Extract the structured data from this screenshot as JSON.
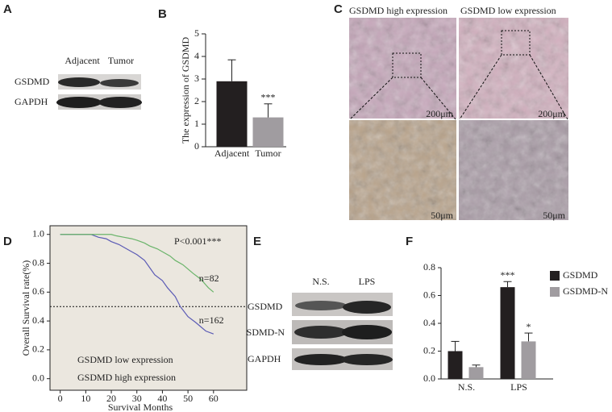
{
  "panel_labels": [
    "A",
    "B",
    "C",
    "D",
    "E",
    "F"
  ],
  "blot_a": {
    "lanes": [
      "Adjacent",
      "Tumor"
    ],
    "rows": [
      "GSDMD",
      "GAPDH"
    ]
  },
  "ihc": {
    "titles": [
      "GSDMD high expression",
      "GSDMD low expression"
    ],
    "scale_bars": [
      "200μm",
      "200μm",
      "50μm",
      "50μm"
    ]
  },
  "blot_e": {
    "lanes": [
      "N.S.",
      "LPS"
    ],
    "rows": [
      "GSDMD",
      "GSDMD-N",
      "GAPDH"
    ]
  },
  "chart_data": [
    {
      "type": "bar",
      "ylabel": "The expression of GSDMD",
      "categories": [
        "Adjacent",
        "Tumor"
      ],
      "values": [
        2.9,
        1.3
      ],
      "errors": [
        0.95,
        0.6
      ],
      "colors": [
        "#231f20",
        "#a09ca0"
      ],
      "value_annotations": [
        null,
        "***"
      ],
      "ylim": [
        0,
        5
      ],
      "yticks": [
        0,
        1,
        2,
        3,
        4,
        5
      ]
    },
    {
      "type": "line",
      "xlabel": "Survival Months",
      "ylabel": "Overall Survival rate(%)",
      "xlim": [
        -4,
        73
      ],
      "ylim": [
        -0.08,
        1.06
      ],
      "xticks": [
        0,
        10,
        20,
        30,
        40,
        50,
        60
      ],
      "yticks": [
        {
          "value": 0,
          "label": "0.0"
        },
        0.2,
        0.4,
        0.6,
        0.8,
        {
          "value": 1,
          "label": "1.0"
        }
      ],
      "hline": 0.5,
      "annotation": "P<0.001***",
      "background": "#ebe7df",
      "series": [
        {
          "name": "GSDMD low expression",
          "color": "#5b5bb5",
          "label": "n=162",
          "x": [
            0,
            12,
            15,
            18,
            20,
            23,
            25,
            28,
            30,
            33,
            35,
            37,
            40,
            42,
            45,
            47,
            50,
            53,
            55,
            57,
            60
          ],
          "values": [
            1.0,
            1.0,
            0.98,
            0.97,
            0.95,
            0.93,
            0.91,
            0.88,
            0.86,
            0.82,
            0.77,
            0.72,
            0.68,
            0.63,
            0.57,
            0.5,
            0.43,
            0.39,
            0.36,
            0.33,
            0.31
          ]
        },
        {
          "name": "GSDMD high expression",
          "color": "#6ab46a",
          "label": "n=82",
          "x": [
            0,
            20,
            22,
            25,
            28,
            30,
            33,
            35,
            38,
            40,
            43,
            45,
            48,
            50,
            52,
            55,
            57,
            58,
            60
          ],
          "values": [
            1.0,
            1.0,
            0.99,
            0.98,
            0.97,
            0.96,
            0.94,
            0.92,
            0.9,
            0.88,
            0.85,
            0.82,
            0.79,
            0.76,
            0.73,
            0.69,
            0.65,
            0.63,
            0.6
          ]
        }
      ]
    },
    {
      "type": "grouped_bar",
      "categories": [
        "N.S.",
        "LPS"
      ],
      "ylim": [
        0,
        0.8
      ],
      "yticks": [
        {
          "value": 0,
          "label": "0.0"
        },
        0.2,
        0.4,
        0.6,
        0.8
      ],
      "legend": "right",
      "series": [
        {
          "name": "GSDMD",
          "color": "#231f20",
          "values": [
            0.2,
            0.66
          ],
          "errors": [
            0.07,
            0.04
          ],
          "value_annotations": [
            null,
            "***"
          ]
        },
        {
          "name": "GSDMD-N",
          "color": "#a09ca0",
          "values": [
            0.085,
            0.27
          ],
          "errors": [
            0.015,
            0.06
          ],
          "value_annotations": [
            null,
            "*"
          ]
        }
      ]
    }
  ]
}
